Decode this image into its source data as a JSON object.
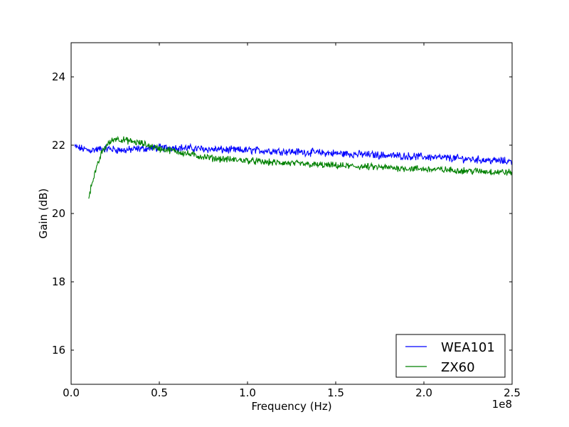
{
  "chart_data": {
    "type": "line",
    "xlabel": "Frequency (Hz)",
    "ylabel": "Gain (dB)",
    "x_offset_label": "1e8",
    "xlim": [
      0,
      2.5
    ],
    "ylim": [
      15,
      25
    ],
    "xticks": [
      {
        "value": 0.0,
        "label": "0.0"
      },
      {
        "value": 0.5,
        "label": "0.5"
      },
      {
        "value": 1.0,
        "label": "1.0"
      },
      {
        "value": 1.5,
        "label": "1.5"
      },
      {
        "value": 2.0,
        "label": "2.0"
      },
      {
        "value": 2.5,
        "label": "2.5"
      }
    ],
    "yticks": [
      {
        "value": 16,
        "label": "16"
      },
      {
        "value": 18,
        "label": "18"
      },
      {
        "value": 20,
        "label": "20"
      },
      {
        "value": 22,
        "label": "22"
      },
      {
        "value": 24,
        "label": "24"
      }
    ],
    "grid": false,
    "legend_position": "bottom-right",
    "series": [
      {
        "name": "WEA101",
        "color": "#0000ff",
        "x": [
          0.02,
          0.1,
          0.2,
          0.3,
          0.4,
          0.5,
          0.6,
          0.7,
          0.8,
          0.9,
          1.0,
          1.1,
          1.2,
          1.3,
          1.4,
          1.5,
          1.6,
          1.7,
          1.8,
          1.9,
          2.0,
          2.1,
          2.2,
          2.3,
          2.4,
          2.5
        ],
        "y": [
          21.95,
          21.85,
          21.9,
          21.85,
          21.9,
          21.92,
          21.93,
          21.9,
          21.88,
          21.86,
          21.85,
          21.84,
          21.82,
          21.8,
          21.78,
          21.76,
          21.74,
          21.72,
          21.7,
          21.68,
          21.66,
          21.63,
          21.61,
          21.58,
          21.55,
          21.52
        ]
      },
      {
        "name": "ZX60",
        "color": "#008000",
        "x": [
          0.1,
          0.11,
          0.12,
          0.13,
          0.15,
          0.17,
          0.2,
          0.25,
          0.3,
          0.35,
          0.4,
          0.5,
          0.6,
          0.7,
          0.8,
          0.9,
          1.0,
          1.1,
          1.2,
          1.3,
          1.4,
          1.5,
          1.6,
          1.7,
          1.8,
          1.9,
          2.0,
          2.1,
          2.2,
          2.3,
          2.4,
          2.5
        ],
        "y": [
          20.5,
          20.7,
          20.95,
          21.1,
          21.4,
          21.75,
          22.0,
          22.2,
          22.15,
          22.1,
          22.05,
          21.9,
          21.82,
          21.7,
          21.62,
          21.58,
          21.55,
          21.5,
          21.48,
          21.45,
          21.42,
          21.4,
          21.38,
          21.36,
          21.34,
          21.32,
          21.3,
          21.28,
          21.26,
          21.24,
          21.22,
          21.2
        ]
      }
    ]
  }
}
